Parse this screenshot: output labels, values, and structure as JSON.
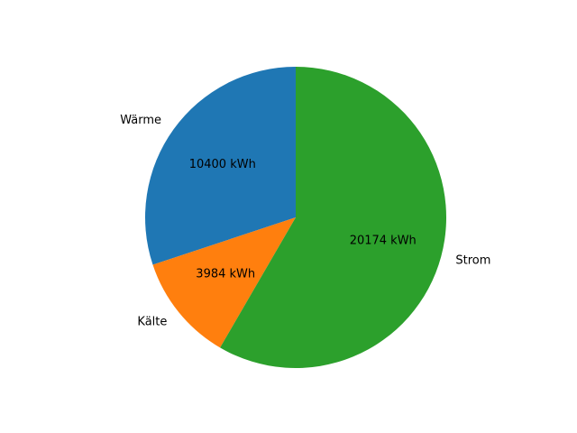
{
  "chart_data": {
    "type": "pie",
    "title": "",
    "unit": "kWh",
    "slices": [
      {
        "label": "Wärme",
        "value": 10400,
        "value_label": "10400 kWh",
        "color": "#1f77b4"
      },
      {
        "label": "Kälte",
        "value": 3984,
        "value_label": "3984 kWh",
        "color": "#ff7f0e"
      },
      {
        "label": "Strom",
        "value": 20174,
        "value_label": "20174 kWh",
        "color": "#2ca02c"
      }
    ],
    "start_angle_deg": 90,
    "direction": "counterclockwise",
    "legend": "none"
  }
}
